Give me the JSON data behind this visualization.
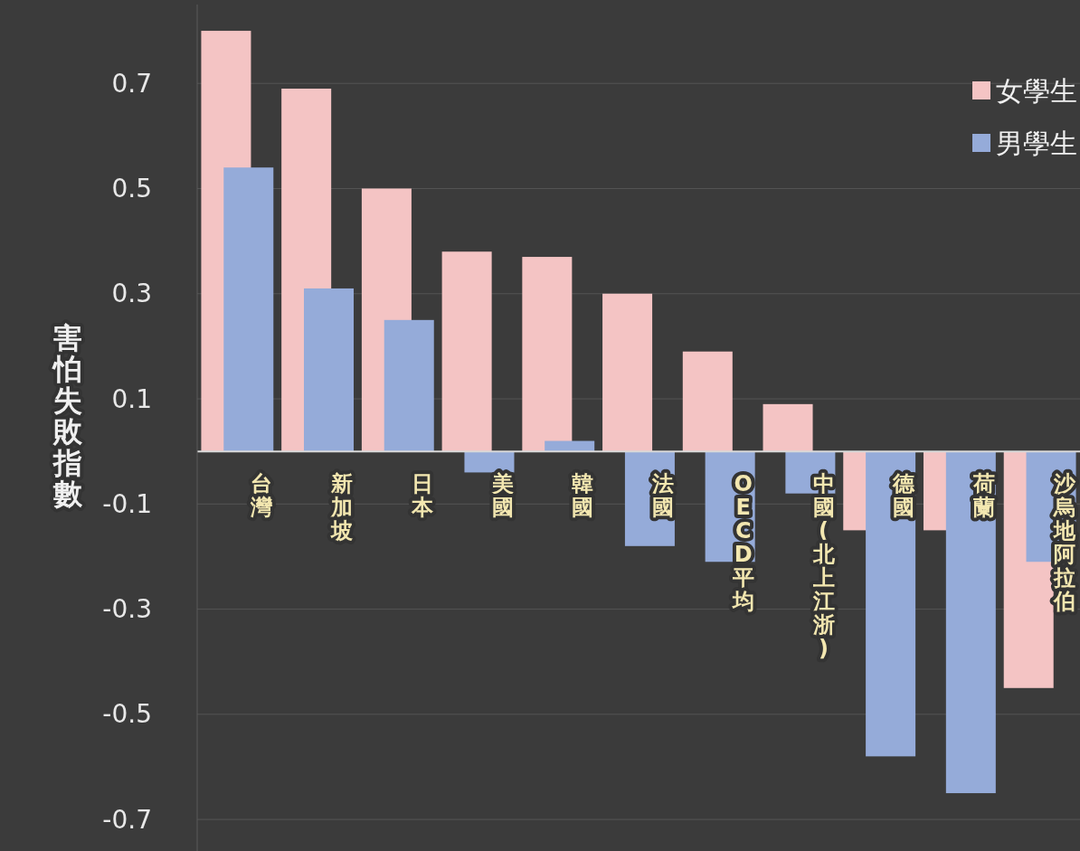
{
  "chart_data": {
    "type": "bar",
    "ylabel": "害怕失敗指數",
    "categories": [
      "台灣",
      "新加坡",
      "日本",
      "美國",
      "韓國",
      "法國",
      "OECD平均",
      "中國(北上江浙)",
      "德國",
      "荷蘭",
      "沙烏地阿拉伯"
    ],
    "series": [
      {
        "name": "女學生",
        "color": "#f4c4c4",
        "values": [
          0.8,
          0.69,
          0.5,
          0.38,
          0.37,
          0.3,
          0.19,
          0.09,
          -0.15,
          -0.15,
          -0.45
        ]
      },
      {
        "name": "男學生",
        "color": "#95abd9",
        "values": [
          0.54,
          0.31,
          0.25,
          -0.04,
          0.02,
          -0.18,
          -0.21,
          -0.08,
          -0.58,
          -0.65,
          -0.21
        ]
      }
    ],
    "ylim": [
      -0.76,
      0.85
    ],
    "yticks": [
      0.7,
      0.5,
      0.3,
      0.1,
      -0.1,
      -0.3,
      -0.5,
      -0.7
    ],
    "grid": "y",
    "legend": "top right"
  }
}
